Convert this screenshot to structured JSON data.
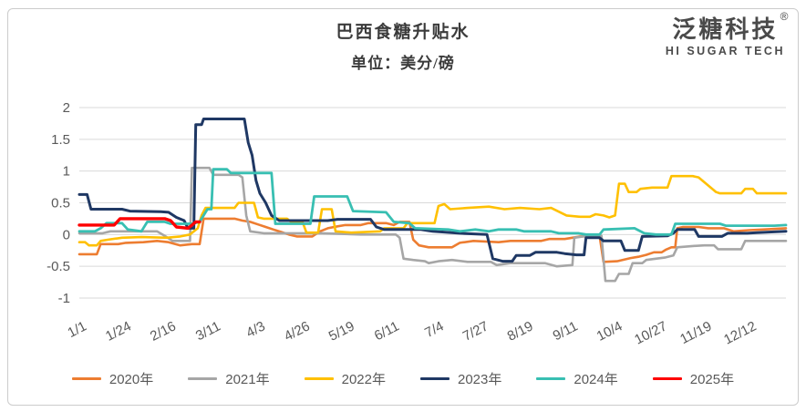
{
  "header": {
    "title": "巴西食糖升贴水",
    "subtitle": "单位：美分/磅"
  },
  "logo": {
    "name_cn": "泛糖科技",
    "registered_mark": "®",
    "name_en": "HI SUGAR TECH"
  },
  "chart_data": {
    "type": "line",
    "title": "巴西食糖升贴水",
    "unit_label": "单位：美分/磅",
    "xlabel": "",
    "ylabel": "",
    "ylim": [
      -1,
      2
    ],
    "y_ticks": [
      "2",
      "1.5",
      "1",
      "0.5",
      "0",
      "-0.5",
      "-1"
    ],
    "x_tick_labels": [
      "1/1",
      "1/24",
      "2/16",
      "3/11",
      "4/3",
      "4/26",
      "5/19",
      "6/11",
      "7/4",
      "7/27",
      "8/19",
      "9/11",
      "10/4",
      "10/27",
      "11/19",
      "12/12"
    ],
    "x_tick_interval_days": 23,
    "x_range_days": [
      0,
      364
    ],
    "grid": "horizontal",
    "grid_color": "#d9d9d9",
    "axis_text_color": "#595959",
    "legend_position": "bottom",
    "series": [
      {
        "name": "2020年",
        "color": "#ED7D31",
        "line_width": 2.6,
        "points": [
          [
            0,
            -0.31
          ],
          [
            9,
            -0.31
          ],
          [
            11,
            -0.15
          ],
          [
            20,
            -0.15
          ],
          [
            24,
            -0.13
          ],
          [
            33,
            -0.12
          ],
          [
            40,
            -0.1
          ],
          [
            46,
            -0.12
          ],
          [
            52,
            -0.17
          ],
          [
            58,
            -0.15
          ],
          [
            62,
            -0.15
          ],
          [
            64,
            0.25
          ],
          [
            80,
            0.25
          ],
          [
            84,
            0.22
          ],
          [
            88,
            0.2
          ],
          [
            92,
            0.16
          ],
          [
            96,
            0.12
          ],
          [
            100,
            0.08
          ],
          [
            104,
            0.04
          ],
          [
            108,
            0.0
          ],
          [
            112,
            -0.03
          ],
          [
            120,
            -0.03
          ],
          [
            124,
            0.05
          ],
          [
            128,
            0.1
          ],
          [
            133,
            0.13
          ],
          [
            137,
            0.15
          ],
          [
            145,
            0.15
          ],
          [
            149,
            0.18
          ],
          [
            158,
            0.18
          ],
          [
            162,
            0.15
          ],
          [
            165,
            0.2
          ],
          [
            170,
            0.2
          ],
          [
            172,
            -0.08
          ],
          [
            175,
            -0.17
          ],
          [
            180,
            -0.2
          ],
          [
            192,
            -0.2
          ],
          [
            196,
            -0.13
          ],
          [
            203,
            -0.1
          ],
          [
            216,
            -0.12
          ],
          [
            222,
            -0.1
          ],
          [
            238,
            -0.1
          ],
          [
            242,
            -0.07
          ],
          [
            250,
            -0.07
          ],
          [
            254,
            -0.05
          ],
          [
            258,
            -0.03
          ],
          [
            268,
            -0.02
          ],
          [
            270,
            -0.43
          ],
          [
            277,
            -0.42
          ],
          [
            284,
            -0.37
          ],
          [
            288,
            -0.35
          ],
          [
            292,
            -0.32
          ],
          [
            296,
            -0.28
          ],
          [
            300,
            -0.28
          ],
          [
            302,
            -0.24
          ],
          [
            305,
            -0.2
          ],
          [
            307,
            -0.2
          ],
          [
            308,
            0.1
          ],
          [
            311,
            0.12
          ],
          [
            319,
            0.12
          ],
          [
            324,
            0.1
          ],
          [
            332,
            0.1
          ],
          [
            337,
            0.05
          ],
          [
            345,
            0.07
          ],
          [
            352,
            0.08
          ],
          [
            364,
            0.1
          ]
        ]
      },
      {
        "name": "2021年",
        "color": "#A6A6A6",
        "line_width": 2.6,
        "points": [
          [
            0,
            0.02
          ],
          [
            12,
            0.02
          ],
          [
            16,
            0.05
          ],
          [
            40,
            0.05
          ],
          [
            44,
            -0.02
          ],
          [
            48,
            -0.1
          ],
          [
            57,
            -0.1
          ],
          [
            58,
            1.05
          ],
          [
            67,
            1.05
          ],
          [
            69,
            0.94
          ],
          [
            82,
            0.94
          ],
          [
            84,
            0.9
          ],
          [
            86,
            0.3
          ],
          [
            88,
            0.05
          ],
          [
            95,
            0.02
          ],
          [
            125,
            0.02
          ],
          [
            145,
            0.0
          ],
          [
            163,
            0.0
          ],
          [
            165,
            -0.05
          ],
          [
            167,
            -0.38
          ],
          [
            172,
            -0.4
          ],
          [
            178,
            -0.42
          ],
          [
            180,
            -0.45
          ],
          [
            185,
            -0.42
          ],
          [
            192,
            -0.4
          ],
          [
            200,
            -0.43
          ],
          [
            212,
            -0.43
          ],
          [
            215,
            -0.48
          ],
          [
            222,
            -0.45
          ],
          [
            240,
            -0.45
          ],
          [
            246,
            -0.5
          ],
          [
            254,
            -0.48
          ],
          [
            255,
            -0.05
          ],
          [
            262,
            -0.02
          ],
          [
            269,
            -0.02
          ],
          [
            271,
            -0.73
          ],
          [
            276,
            -0.73
          ],
          [
            278,
            -0.62
          ],
          [
            283,
            -0.62
          ],
          [
            285,
            -0.45
          ],
          [
            290,
            -0.45
          ],
          [
            292,
            -0.4
          ],
          [
            297,
            -0.38
          ],
          [
            302,
            -0.36
          ],
          [
            306,
            -0.33
          ],
          [
            308,
            -0.2
          ],
          [
            316,
            -0.18
          ],
          [
            322,
            -0.17
          ],
          [
            327,
            -0.17
          ],
          [
            329,
            -0.23
          ],
          [
            341,
            -0.23
          ],
          [
            343,
            -0.1
          ],
          [
            364,
            -0.1
          ]
        ]
      },
      {
        "name": "2022年",
        "color": "#FFC000",
        "line_width": 2.6,
        "points": [
          [
            0,
            -0.12
          ],
          [
            3,
            -0.12
          ],
          [
            5,
            -0.17
          ],
          [
            9,
            -0.17
          ],
          [
            11,
            -0.1
          ],
          [
            15,
            -0.08
          ],
          [
            22,
            -0.05
          ],
          [
            32,
            -0.04
          ],
          [
            45,
            -0.05
          ],
          [
            52,
            -0.03
          ],
          [
            57,
            0.0
          ],
          [
            59,
            0.05
          ],
          [
            61,
            0.1
          ],
          [
            63,
            0.3
          ],
          [
            65,
            0.42
          ],
          [
            80,
            0.42
          ],
          [
            82,
            0.5
          ],
          [
            90,
            0.5
          ],
          [
            92,
            0.27
          ],
          [
            95,
            0.25
          ],
          [
            107,
            0.25
          ],
          [
            109,
            0.2
          ],
          [
            115,
            0.2
          ],
          [
            117,
            0.03
          ],
          [
            123,
            0.03
          ],
          [
            125,
            0.4
          ],
          [
            130,
            0.4
          ],
          [
            132,
            0.05
          ],
          [
            140,
            0.03
          ],
          [
            155,
            0.05
          ],
          [
            157,
            0.1
          ],
          [
            167,
            0.1
          ],
          [
            169,
            0.18
          ],
          [
            183,
            0.18
          ],
          [
            185,
            0.45
          ],
          [
            188,
            0.48
          ],
          [
            191,
            0.4
          ],
          [
            200,
            0.42
          ],
          [
            211,
            0.44
          ],
          [
            219,
            0.4
          ],
          [
            227,
            0.42
          ],
          [
            237,
            0.4
          ],
          [
            243,
            0.42
          ],
          [
            251,
            0.3
          ],
          [
            258,
            0.28
          ],
          [
            263,
            0.28
          ],
          [
            266,
            0.32
          ],
          [
            270,
            0.3
          ],
          [
            273,
            0.27
          ],
          [
            276,
            0.3
          ],
          [
            278,
            0.8
          ],
          [
            281,
            0.8
          ],
          [
            283,
            0.67
          ],
          [
            287,
            0.67
          ],
          [
            289,
            0.72
          ],
          [
            295,
            0.74
          ],
          [
            303,
            0.74
          ],
          [
            305,
            0.92
          ],
          [
            316,
            0.92
          ],
          [
            319,
            0.9
          ],
          [
            328,
            0.67
          ],
          [
            330,
            0.65
          ],
          [
            341,
            0.65
          ],
          [
            343,
            0.72
          ],
          [
            347,
            0.72
          ],
          [
            349,
            0.65
          ],
          [
            364,
            0.65
          ]
        ]
      },
      {
        "name": "2023年",
        "color": "#1F3864",
        "line_width": 3,
        "points": [
          [
            0,
            0.63
          ],
          [
            4,
            0.63
          ],
          [
            6,
            0.4
          ],
          [
            22,
            0.4
          ],
          [
            26,
            0.37
          ],
          [
            42,
            0.36
          ],
          [
            46,
            0.35
          ],
          [
            50,
            0.27
          ],
          [
            54,
            0.22
          ],
          [
            56,
            0.1
          ],
          [
            59,
            0.1
          ],
          [
            60,
            1.73
          ],
          [
            63,
            1.73
          ],
          [
            64,
            1.82
          ],
          [
            85,
            1.82
          ],
          [
            87,
            1.45
          ],
          [
            89,
            1.25
          ],
          [
            91,
            0.85
          ],
          [
            93,
            0.65
          ],
          [
            96,
            0.5
          ],
          [
            99,
            0.3
          ],
          [
            103,
            0.22
          ],
          [
            128,
            0.22
          ],
          [
            133,
            0.24
          ],
          [
            150,
            0.24
          ],
          [
            153,
            0.12
          ],
          [
            157,
            0.08
          ],
          [
            176,
            0.08
          ],
          [
            182,
            0.05
          ],
          [
            196,
            0.02
          ],
          [
            210,
            0.0
          ],
          [
            213,
            -0.38
          ],
          [
            218,
            -0.42
          ],
          [
            223,
            -0.42
          ],
          [
            225,
            -0.33
          ],
          [
            232,
            -0.33
          ],
          [
            235,
            -0.28
          ],
          [
            246,
            -0.28
          ],
          [
            250,
            -0.3
          ],
          [
            256,
            -0.32
          ],
          [
            260,
            -0.32
          ],
          [
            261,
            -0.05
          ],
          [
            268,
            -0.05
          ],
          [
            270,
            -0.1
          ],
          [
            279,
            -0.1
          ],
          [
            281,
            -0.25
          ],
          [
            288,
            -0.25
          ],
          [
            290,
            -0.03
          ],
          [
            303,
            -0.02
          ],
          [
            306,
            0.02
          ],
          [
            308,
            0.08
          ],
          [
            317,
            0.08
          ],
          [
            319,
            -0.03
          ],
          [
            331,
            -0.03
          ],
          [
            334,
            0.02
          ],
          [
            344,
            0.02
          ],
          [
            349,
            0.03
          ],
          [
            364,
            0.05
          ]
        ]
      },
      {
        "name": "2024年",
        "color": "#38BFB2",
        "line_width": 2.8,
        "points": [
          [
            0,
            0.05
          ],
          [
            8,
            0.05
          ],
          [
            11,
            0.1
          ],
          [
            14,
            0.18
          ],
          [
            22,
            0.18
          ],
          [
            25,
            0.08
          ],
          [
            32,
            0.05
          ],
          [
            35,
            0.2
          ],
          [
            44,
            0.2
          ],
          [
            47,
            0.17
          ],
          [
            58,
            0.17
          ],
          [
            62,
            0.2
          ],
          [
            66,
            0.4
          ],
          [
            68,
            0.4
          ],
          [
            69,
            1.03
          ],
          [
            76,
            1.03
          ],
          [
            78,
            0.97
          ],
          [
            99,
            0.97
          ],
          [
            101,
            0.17
          ],
          [
            119,
            0.17
          ],
          [
            121,
            0.6
          ],
          [
            138,
            0.6
          ],
          [
            141,
            0.37
          ],
          [
            158,
            0.35
          ],
          [
            162,
            0.2
          ],
          [
            170,
            0.18
          ],
          [
            173,
            0.1
          ],
          [
            190,
            0.08
          ],
          [
            196,
            0.05
          ],
          [
            204,
            0.08
          ],
          [
            211,
            0.05
          ],
          [
            216,
            0.08
          ],
          [
            225,
            0.08
          ],
          [
            229,
            0.05
          ],
          [
            243,
            0.05
          ],
          [
            247,
            0.02
          ],
          [
            257,
            0.02
          ],
          [
            261,
            0.0
          ],
          [
            268,
            0.0
          ],
          [
            270,
            0.08
          ],
          [
            286,
            0.1
          ],
          [
            291,
            0.02
          ],
          [
            297,
            0.0
          ],
          [
            305,
            0.0
          ],
          [
            307,
            0.17
          ],
          [
            330,
            0.17
          ],
          [
            333,
            0.14
          ],
          [
            358,
            0.14
          ],
          [
            364,
            0.15
          ]
        ]
      },
      {
        "name": "2025年",
        "color": "#FE0000",
        "line_width": 3.4,
        "points": [
          [
            0,
            0.15
          ],
          [
            18,
            0.15
          ],
          [
            21,
            0.25
          ],
          [
            44,
            0.25
          ],
          [
            47,
            0.22
          ],
          [
            50,
            0.12
          ],
          [
            56,
            0.1
          ],
          [
            58,
            0.15
          ],
          [
            60,
            0.2
          ],
          [
            62,
            0.2
          ]
        ]
      }
    ]
  }
}
